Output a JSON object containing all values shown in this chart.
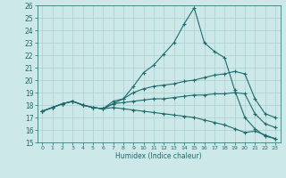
{
  "xlabel": "Humidex (Indice chaleur)",
  "x": [
    0,
    1,
    2,
    3,
    4,
    5,
    6,
    7,
    8,
    9,
    10,
    11,
    12,
    13,
    14,
    15,
    16,
    17,
    18,
    19,
    20,
    21,
    22,
    23
  ],
  "line_max": [
    17.5,
    17.8,
    18.1,
    18.3,
    18.0,
    17.8,
    17.7,
    18.3,
    18.5,
    19.5,
    20.6,
    21.2,
    22.1,
    23.0,
    24.5,
    25.8,
    23.0,
    22.3,
    21.8,
    19.2,
    17.0,
    16.1,
    15.5,
    15.3
  ],
  "line_hi": [
    17.5,
    17.8,
    18.1,
    18.3,
    18.0,
    17.8,
    17.7,
    18.1,
    18.5,
    19.0,
    19.3,
    19.5,
    19.6,
    19.7,
    19.9,
    20.0,
    20.2,
    20.4,
    20.5,
    20.7,
    20.5,
    18.5,
    17.3,
    17.0
  ],
  "line_lo": [
    17.5,
    17.8,
    18.1,
    18.3,
    18.0,
    17.8,
    17.7,
    18.1,
    18.2,
    18.3,
    18.4,
    18.5,
    18.5,
    18.6,
    18.7,
    18.8,
    18.8,
    18.9,
    18.9,
    19.0,
    18.9,
    17.3,
    16.5,
    16.2
  ],
  "line_min": [
    17.5,
    17.8,
    18.1,
    18.3,
    18.0,
    17.8,
    17.7,
    17.8,
    17.7,
    17.6,
    17.5,
    17.4,
    17.3,
    17.2,
    17.1,
    17.0,
    16.8,
    16.6,
    16.4,
    16.1,
    15.8,
    15.9,
    15.6,
    15.3
  ],
  "line_color": "#1e6b6b",
  "bg_color": "#cce8e8",
  "grid_color": "#aacfcf",
  "ylim": [
    15,
    26
  ],
  "xlim_min": -0.5,
  "xlim_max": 23.5,
  "yticks": [
    15,
    16,
    17,
    18,
    19,
    20,
    21,
    22,
    23,
    24,
    25,
    26
  ],
  "xticks": [
    0,
    1,
    2,
    3,
    4,
    5,
    6,
    7,
    8,
    9,
    10,
    11,
    12,
    13,
    14,
    15,
    16,
    17,
    18,
    19,
    20,
    21,
    22,
    23
  ]
}
